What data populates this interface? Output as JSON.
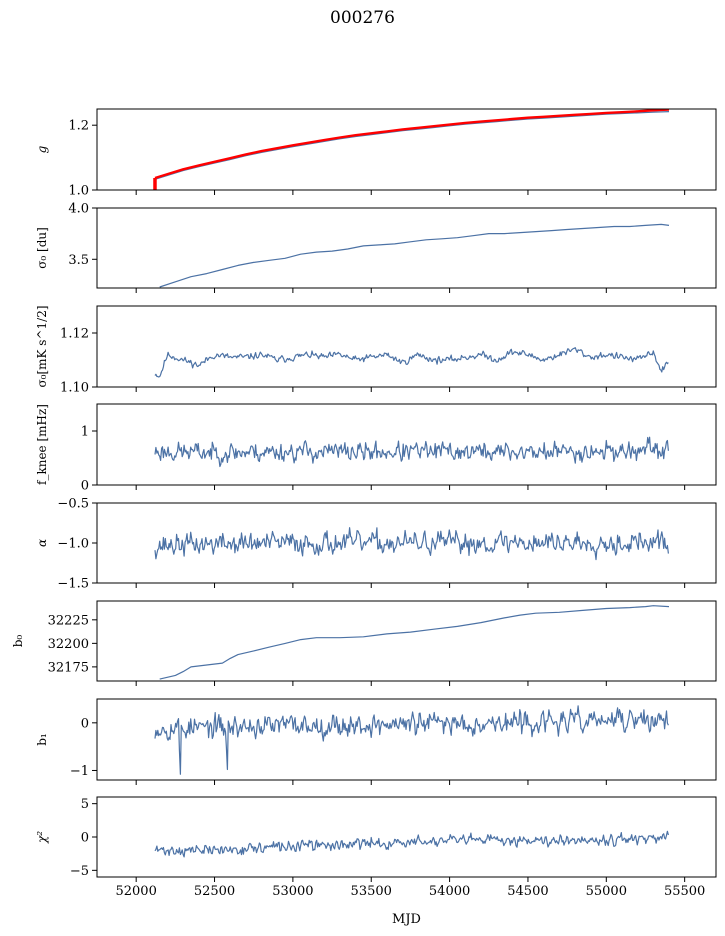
{
  "title": "000276",
  "xlabel": "MJD",
  "colors": {
    "series": "#4c72a5",
    "reference": "#ff0000",
    "axes": "#000000"
  },
  "chart_data": [
    {
      "type": "line",
      "ylabel": "g",
      "italic": true,
      "xlim": [
        51750,
        55700
      ],
      "ylim": [
        1.0,
        1.25
      ],
      "yticks": [
        1.0,
        1.2
      ],
      "ytick_labels": [
        "1.0",
        "1.2"
      ],
      "series": [
        {
          "style": "main",
          "x": [
            52120,
            52200,
            52300,
            52400,
            52500,
            52600,
            52700,
            52800,
            52900,
            53000,
            53100,
            53200,
            53300,
            53400,
            53500,
            53600,
            53700,
            53800,
            53900,
            54000,
            54100,
            54200,
            54300,
            54400,
            54500,
            54600,
            54700,
            54800,
            54900,
            55000,
            55100,
            55200,
            55300,
            55400
          ],
          "y": [
            1.033,
            1.045,
            1.06,
            1.072,
            1.083,
            1.094,
            1.106,
            1.116,
            1.125,
            1.134,
            1.142,
            1.15,
            1.158,
            1.165,
            1.171,
            1.177,
            1.183,
            1.188,
            1.193,
            1.198,
            1.203,
            1.207,
            1.211,
            1.215,
            1.219,
            1.222,
            1.225,
            1.228,
            1.231,
            1.234,
            1.236,
            1.238,
            1.24,
            1.242
          ]
        },
        {
          "style": "reference",
          "x": [
            52120,
            52200,
            52300,
            52400,
            52500,
            52600,
            52700,
            52800,
            52900,
            53000,
            53100,
            53200,
            53300,
            53400,
            53500,
            53600,
            53700,
            53800,
            53900,
            54000,
            54100,
            54200,
            54300,
            54400,
            54500,
            54600,
            54700,
            54800,
            54900,
            55000,
            55100,
            55200,
            55300,
            55400
          ],
          "y": [
            1.037,
            1.049,
            1.064,
            1.076,
            1.087,
            1.098,
            1.11,
            1.12,
            1.129,
            1.138,
            1.146,
            1.154,
            1.162,
            1.169,
            1.175,
            1.181,
            1.187,
            1.192,
            1.197,
            1.202,
            1.207,
            1.211,
            1.215,
            1.219,
            1.223,
            1.226,
            1.229,
            1.232,
            1.235,
            1.238,
            1.24,
            1.243,
            1.246,
            1.248
          ]
        }
      ]
    },
    {
      "type": "line",
      "ylabel": "σ₀ [du]",
      "xlim": [
        51750,
        55700
      ],
      "ylim": [
        3.22,
        4.0
      ],
      "yticks": [
        3.5,
        4.0
      ],
      "ytick_labels": [
        "3.5",
        "4.0"
      ],
      "series": [
        {
          "style": "main",
          "x": [
            52150,
            52250,
            52350,
            52450,
            52550,
            52650,
            52750,
            52850,
            52950,
            53050,
            53150,
            53250,
            53350,
            53450,
            53550,
            53650,
            53750,
            53850,
            53950,
            54050,
            54150,
            54250,
            54350,
            54450,
            54550,
            54650,
            54750,
            54850,
            54950,
            55050,
            55150,
            55250,
            55350,
            55400
          ],
          "y": [
            3.23,
            3.28,
            3.33,
            3.36,
            3.4,
            3.44,
            3.47,
            3.49,
            3.51,
            3.55,
            3.57,
            3.58,
            3.6,
            3.63,
            3.64,
            3.65,
            3.67,
            3.69,
            3.7,
            3.71,
            3.73,
            3.75,
            3.75,
            3.76,
            3.77,
            3.78,
            3.79,
            3.8,
            3.81,
            3.82,
            3.82,
            3.83,
            3.84,
            3.83
          ]
        }
      ]
    },
    {
      "type": "line",
      "ylabel": "σ₀[mK s^1/2]",
      "xlim": [
        51750,
        55700
      ],
      "ylim": [
        1.1,
        1.13
      ],
      "yticks": [
        1.1,
        1.12
      ],
      "ytick_labels": [
        "1.10",
        "1.12"
      ],
      "series": [
        {
          "style": "main",
          "noise": {
            "seed": 11,
            "amp": 0.0009
          },
          "x": [
            52120,
            52150,
            52200,
            52300,
            52400,
            52500,
            52600,
            52700,
            52800,
            52900,
            53000,
            53100,
            53200,
            53300,
            53400,
            53500,
            53600,
            53700,
            53800,
            53900,
            54000,
            54100,
            54200,
            54300,
            54400,
            54500,
            54600,
            54700,
            54800,
            54900,
            55000,
            55100,
            55200,
            55300,
            55350,
            55400
          ],
          "y": [
            1.105,
            1.104,
            1.112,
            1.11,
            1.108,
            1.112,
            1.111,
            1.111,
            1.112,
            1.11,
            1.111,
            1.112,
            1.111,
            1.112,
            1.11,
            1.111,
            1.112,
            1.109,
            1.112,
            1.11,
            1.11,
            1.111,
            1.112,
            1.11,
            1.113,
            1.112,
            1.11,
            1.112,
            1.114,
            1.111,
            1.112,
            1.111,
            1.11,
            1.113,
            1.106,
            1.109
          ]
        }
      ]
    },
    {
      "type": "line",
      "ylabel": "f_knee [mHz]",
      "xlim": [
        51750,
        55700
      ],
      "ylim": [
        0,
        1.5
      ],
      "yticks": [
        0,
        1
      ],
      "ytick_labels": [
        "0",
        "1"
      ],
      "series": [
        {
          "style": "main",
          "noise": {
            "seed": 23,
            "amp": 0.13
          },
          "x": [
            52120,
            52500,
            53000,
            53500,
            54000,
            54500,
            55000,
            55400
          ],
          "y": [
            0.62,
            0.6,
            0.62,
            0.61,
            0.62,
            0.61,
            0.63,
            0.64
          ]
        }
      ]
    },
    {
      "type": "line",
      "ylabel": "α",
      "italic": true,
      "xlim": [
        51750,
        55700
      ],
      "ylim": [
        -1.5,
        -0.5
      ],
      "yticks": [
        -1.5,
        -1.0,
        -0.5
      ],
      "ytick_labels": [
        "−1.5",
        "−1.0",
        "−0.5"
      ],
      "series": [
        {
          "style": "main",
          "noise": {
            "seed": 37,
            "amp": 0.1
          },
          "x": [
            52120,
            52500,
            53000,
            53500,
            54000,
            54500,
            55000,
            55400
          ],
          "y": [
            -1.03,
            -1.01,
            -1.0,
            -1.0,
            -1.0,
            -0.99,
            -0.99,
            -1.0
          ]
        }
      ]
    },
    {
      "type": "line",
      "ylabel": "b₀",
      "xlim": [
        51750,
        55700
      ],
      "ylim": [
        32160,
        32245
      ],
      "yticks": [
        32175,
        32200,
        32225
      ],
      "ytick_labels": [
        "32175",
        "32200",
        "32225"
      ],
      "series": [
        {
          "style": "main",
          "x": [
            52150,
            52250,
            52300,
            52350,
            52450,
            52550,
            52600,
            52650,
            52750,
            52850,
            52950,
            53050,
            53150,
            53300,
            53450,
            53600,
            53750,
            53900,
            54050,
            54200,
            54350,
            54450,
            54550,
            54700,
            54850,
            55000,
            55150,
            55250,
            55300,
            55400
          ],
          "y": [
            32162,
            32166,
            32170,
            32175,
            32177,
            32179,
            32184,
            32188,
            32192,
            32196,
            32200,
            32204,
            32206,
            32206,
            32207,
            32210,
            32212,
            32215,
            32218,
            32222,
            32227,
            32230,
            32232,
            32233,
            32235,
            32237,
            32238,
            32239,
            32240,
            32239
          ]
        }
      ]
    },
    {
      "type": "line",
      "ylabel": "b₁",
      "xlim": [
        51750,
        55700
      ],
      "ylim": [
        -1.2,
        0.5
      ],
      "yticks": [
        -1,
        0
      ],
      "ytick_labels": [
        "−1",
        "0"
      ],
      "series": [
        {
          "style": "main",
          "noise": {
            "seed": 53,
            "amp": 0.17
          },
          "spikes": [
            [
              52283,
              -1.08
            ],
            [
              52585,
              -0.98
            ]
          ],
          "x": [
            52120,
            52500,
            53000,
            53500,
            54000,
            54500,
            55000,
            55400
          ],
          "y": [
            -0.1,
            -0.1,
            -0.05,
            -0.05,
            0.0,
            0.0,
            0.05,
            0.05
          ]
        }
      ]
    },
    {
      "type": "line",
      "ylabel": "χ²",
      "italic": true,
      "xlim": [
        51750,
        55700
      ],
      "ylim": [
        -6,
        6
      ],
      "yticks": [
        -5,
        0,
        5
      ],
      "ytick_labels": [
        "−5",
        "0",
        "5"
      ],
      "xticks": [
        52000,
        52500,
        53000,
        53500,
        54000,
        54500,
        55000,
        55500
      ],
      "xtick_labels": [
        "52000",
        "52500",
        "53000",
        "53500",
        "54000",
        "54500",
        "55000",
        "55500"
      ],
      "series": [
        {
          "style": "main",
          "noise": {
            "seed": 71,
            "amp": 0.6
          },
          "x": [
            52120,
            52500,
            53000,
            53500,
            54000,
            54500,
            55000,
            55400
          ],
          "y": [
            -2.0,
            -2.0,
            -1.4,
            -1.0,
            -0.6,
            -0.4,
            -0.3,
            -0.3
          ]
        }
      ]
    }
  ]
}
